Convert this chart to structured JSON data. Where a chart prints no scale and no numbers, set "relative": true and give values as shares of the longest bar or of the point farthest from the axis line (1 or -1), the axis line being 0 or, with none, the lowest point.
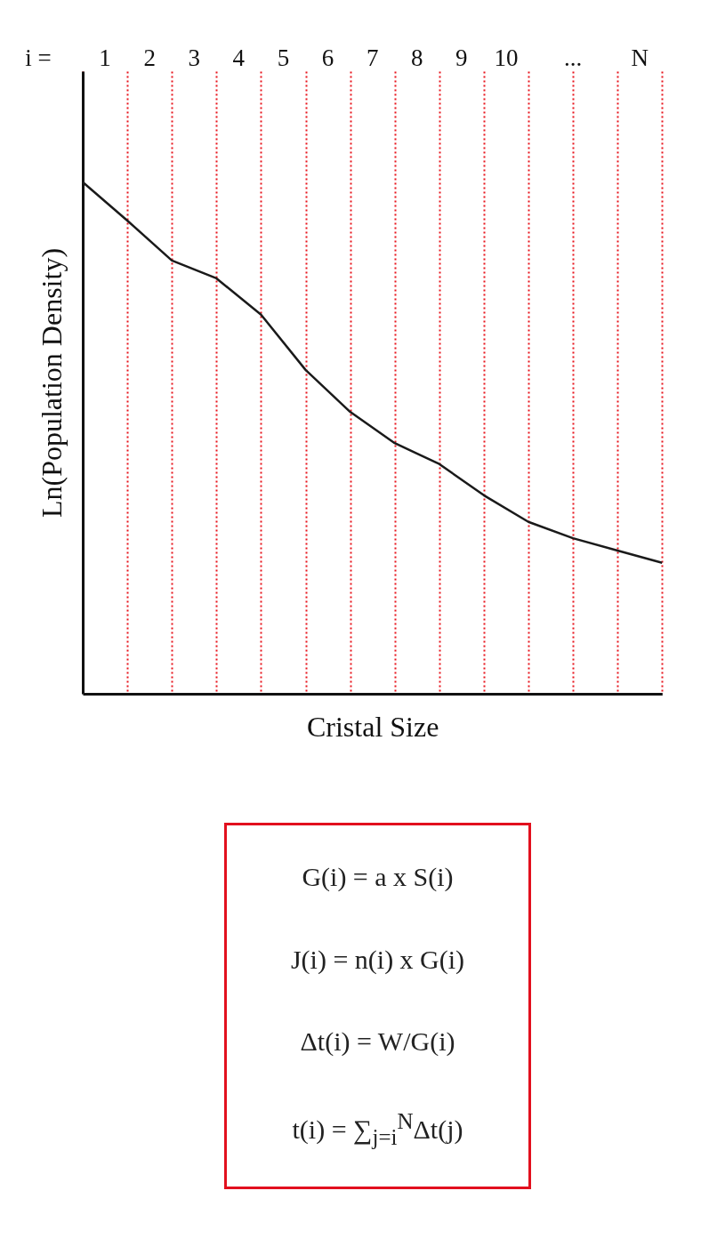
{
  "chart_data": {
    "type": "line",
    "relative": true,
    "xlabel": "Cristal Size",
    "ylabel": "Ln(Population Density)",
    "categories": [
      null,
      null,
      null,
      null,
      null,
      null,
      null,
      null,
      null,
      null,
      null,
      null,
      null,
      null
    ],
    "series": [
      {
        "color": "#1a1a1a",
        "values": [
          1.0,
          0.925,
          0.847,
          0.812,
          0.741,
          0.633,
          0.551,
          0.49,
          0.449,
          0.388,
          0.336,
          0.304,
          0.28,
          0.256
        ]
      }
    ],
    "marker": "none",
    "line_style": "solid",
    "grid": "x",
    "annotations": [
      "i =",
      "1",
      "2",
      "3",
      "4",
      "5",
      "6",
      "7",
      "8",
      "9",
      "10",
      "...",
      "N",
      "G(i) = a x S(i)",
      "J(i) = n(i) x G(i)",
      "Δt(i) = W/G(i)",
      "t(i) = ∑$_{j=i}$$^{N}$Δt(j)"
    ]
  }
}
